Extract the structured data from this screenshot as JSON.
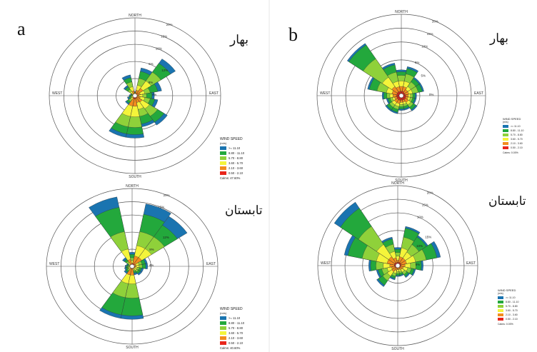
{
  "panels": {
    "a": {
      "label": "a",
      "top": {
        "season": "بهار"
      },
      "bottom": {
        "season": "تابستان"
      }
    },
    "b": {
      "label": "b",
      "top": {
        "season": "بهار"
      },
      "bottom": {
        "season": "تابستان"
      }
    }
  },
  "legend_a_top": {
    "title": "WIND SPEED",
    "unit": "(m/s)",
    "classes": [
      ">= 11.10",
      "8.80 - 11.10",
      "5.70 - 8.80",
      "3.60 - 5.70",
      "2.10 - 3.60",
      "0.50 - 2.10"
    ],
    "calms": "Calms: 47.60%"
  },
  "legend_a_bottom": {
    "title": "WIND SPEED",
    "unit": "(m/s)",
    "classes": [
      ">= 11.10",
      "8.80 - 11.10",
      "5.70 - 8.80",
      "3.60 - 5.70",
      "2.10 - 3.60",
      "0.50 - 2.10"
    ],
    "calms": "Calms: 40.60%"
  },
  "legend_b_top": {
    "title": "WIND SPEED",
    "unit": "(m/s)",
    "classes": [
      ">= 11.10",
      "8.80 - 11.10",
      "5.70 - 8.80",
      "3.60 - 5.70",
      "2.10 - 3.60",
      "0.50 - 2.10"
    ],
    "calms": "Calms: 0.00%"
  },
  "legend_b_bottom": {
    "title": "WIND SPEED",
    "unit": "(m/s)",
    "classes": [
      ">= 11.10",
      "8.80 - 11.10",
      "5.70 - 8.80",
      "3.60 - 5.70",
      "2.10 - 3.60",
      "0.50 - 2.10"
    ],
    "calms": "Calms: 0.00%"
  },
  "colors": {
    "speed_bins": [
      "#1a74b0",
      "#23a83c",
      "#8fd13a",
      "#f4f43a",
      "#f28c1e",
      "#e8261c"
    ],
    "grid": "#555555"
  },
  "chart_data": [
    {
      "id": "a_top",
      "type": "windrose",
      "directions": [
        "N",
        "NNE",
        "NE",
        "ENE",
        "E",
        "ESE",
        "SE",
        "SSE",
        "S",
        "SSW",
        "SW",
        "WSW",
        "W",
        "WNW",
        "NW",
        "NNW"
      ],
      "rings": [
        5,
        10,
        15,
        20
      ],
      "ring_labels": [
        "5%",
        "10%",
        "15%",
        "20%"
      ],
      "compass": [
        "NORTH",
        "EAST",
        "SOUTH",
        "WEST"
      ],
      "bins": [
        ">= 11.10",
        "8.80 - 11.10",
        "5.70 - 8.80",
        "3.60 - 5.70",
        "2.10 - 3.60",
        "0.50 - 2.10"
      ],
      "cumulative": [
        [
          1.2,
          1.0,
          0.8,
          0.6,
          0.4,
          0.2
        ],
        [
          8,
          7,
          5,
          3,
          1.6,
          0.5
        ],
        [
          12.5,
          11,
          8,
          5,
          2.5,
          0.8
        ],
        [
          7,
          6,
          4,
          2.6,
          1.4,
          0.5
        ],
        [
          5,
          4.4,
          3,
          2,
          1,
          0.4
        ],
        [
          6,
          5.2,
          4,
          2.6,
          1.4,
          0.5
        ],
        [
          10,
          9,
          7,
          4.5,
          2.2,
          0.7
        ],
        [
          9,
          8.2,
          6,
          4,
          2,
          0.7
        ],
        [
          12,
          11,
          9,
          6,
          3,
          0.9
        ],
        [
          12,
          11,
          9,
          6,
          3,
          0.9
        ],
        [
          3,
          2.6,
          2,
          1.4,
          0.8,
          0.3
        ],
        [
          2,
          1.6,
          1.2,
          0.9,
          0.5,
          0.2
        ],
        [
          1.5,
          1.2,
          0.9,
          0.6,
          0.4,
          0.2
        ],
        [
          1.2,
          1,
          0.8,
          0.6,
          0.4,
          0.2
        ],
        [
          3.5,
          3,
          2.2,
          1.5,
          0.8,
          0.3
        ],
        [
          6,
          5.2,
          4,
          2.6,
          1.4,
          0.5
        ]
      ],
      "bar_labels": [
        {
          "dir": "NE",
          "ring": 2,
          "text": "12%"
        },
        {
          "dir": "NE",
          "ring": 1,
          "text": "8%"
        },
        {
          "dir": "E",
          "ring": 0.9,
          "text": "4%"
        }
      ],
      "calms": "Calms: 47.60%"
    },
    {
      "id": "a_bottom",
      "type": "windrose",
      "directions": [
        "N",
        "NNE",
        "NE",
        "ENE",
        "E",
        "ESE",
        "SE",
        "SSE",
        "S",
        "SSW",
        "SW",
        "WSW",
        "W",
        "WNW",
        "NW",
        "NNW"
      ],
      "rings": [
        5,
        10,
        15,
        20
      ],
      "ring_labels": [
        "5%",
        "10%",
        "15%",
        "20%"
      ],
      "compass": [
        "NORTH",
        "EAST",
        "SOUTH",
        "WEST"
      ],
      "bins": [
        ">= 11.10",
        "8.80 - 11.10",
        "5.70 - 8.80",
        "3.60 - 5.70",
        "2.10 - 3.60",
        "0.50 - 2.10"
      ],
      "cumulative": [
        [
          4,
          3.4,
          2.4,
          1.6,
          0.9,
          0.3
        ],
        [
          18,
          15,
          10,
          6,
          3,
          0.8
        ],
        [
          17,
          14,
          10,
          6,
          3,
          0.8
        ],
        [
          4,
          3.5,
          2.6,
          1.8,
          1,
          0.4
        ],
        [
          4,
          3.5,
          2.6,
          1.8,
          1,
          0.4
        ],
        [
          3,
          2.5,
          1.9,
          1.4,
          0.8,
          0.3
        ],
        [
          3,
          2.5,
          1.9,
          1.4,
          0.8,
          0.3
        ],
        [
          2.5,
          2,
          1.5,
          1.1,
          0.7,
          0.3
        ],
        [
          15,
          14,
          9,
          5,
          2.5,
          0.7
        ],
        [
          15,
          14,
          9,
          5,
          2.5,
          0.7
        ],
        [
          2.5,
          2,
          1.5,
          1.1,
          0.7,
          0.3
        ],
        [
          2,
          1.6,
          1.2,
          0.9,
          0.5,
          0.2
        ],
        [
          1.8,
          1.5,
          1.1,
          0.8,
          0.5,
          0.2
        ],
        [
          1.5,
          1.2,
          0.9,
          0.6,
          0.4,
          0.2
        ],
        [
          3,
          2.4,
          1.8,
          1.2,
          0.7,
          0.3
        ],
        [
          20,
          17,
          10,
          5,
          2,
          0.6
        ]
      ],
      "bar_labels": [
        {
          "dir": "NE",
          "ring": 2.3,
          "text": "12%"
        },
        {
          "dir": "NE",
          "ring": 1.3,
          "text": "8%"
        },
        {
          "dir": "E",
          "ring": 0.9,
          "text": "4%"
        }
      ],
      "calms": "Calms: 40.60%"
    },
    {
      "id": "b_top",
      "type": "windrose",
      "directions": [
        "N",
        "NNE",
        "NE",
        "ENE",
        "E",
        "ESE",
        "SE",
        "SSE",
        "S",
        "SSW",
        "SW",
        "WSW",
        "W",
        "WNW",
        "NW",
        "NNW"
      ],
      "rings": [
        5,
        10,
        15,
        20
      ],
      "ring_labels": [
        "5%",
        "10%",
        "15%",
        "20%"
      ],
      "compass": [
        "NORTH",
        "EAST",
        "SOUTH",
        "WEST"
      ],
      "bins": [
        ">= 11.10",
        "8.80 - 11.10",
        "5.70 - 8.80",
        "3.60 - 5.70",
        "2.10 - 3.60",
        "0.50 - 2.10"
      ],
      "cumulative": [
        [
          7,
          6.5,
          5.5,
          4,
          2.5,
          1.2
        ],
        [
          8,
          7.5,
          6,
          4,
          2.5,
          1.2
        ],
        [
          6,
          5.6,
          4.5,
          3,
          2,
          1
        ],
        [
          6,
          5.6,
          4.5,
          3,
          2,
          1
        ],
        [
          4,
          3.6,
          3,
          2.4,
          1.8,
          1.2
        ],
        [
          4,
          3.6,
          3,
          2.4,
          1.8,
          1.2
        ],
        [
          5,
          4.6,
          3.8,
          3,
          2.2,
          1.3
        ],
        [
          4,
          3.6,
          3,
          2.4,
          1.8,
          1.2
        ],
        [
          4,
          3.6,
          3,
          2.4,
          1.8,
          1.2
        ],
        [
          5,
          4.6,
          3.8,
          3,
          2.2,
          1.3
        ],
        [
          5,
          4.6,
          3.8,
          3,
          2.2,
          1.3
        ],
        [
          4,
          3.6,
          3,
          2.4,
          1.8,
          1.2
        ],
        [
          5,
          4.6,
          3.8,
          3,
          2.2,
          1.3
        ],
        [
          9,
          8.5,
          6.5,
          4,
          2.5,
          1.2
        ],
        [
          17,
          16.5,
          12,
          6,
          3,
          1.3
        ],
        [
          9,
          8.5,
          6.5,
          4,
          2.5,
          1.2
        ]
      ],
      "bar_labels": [
        {
          "dir": "NE",
          "ring": 1.5,
          "text": "5%"
        },
        {
          "dir": "E",
          "ring": 1.5,
          "text": "0%"
        }
      ],
      "calms": "Calms: 0.00%"
    },
    {
      "id": "b_bottom",
      "type": "windrose",
      "directions": [
        "N",
        "NNE",
        "NE",
        "ENE",
        "E",
        "ESE",
        "SE",
        "SSE",
        "S",
        "SSW",
        "SW",
        "WSW",
        "W",
        "WNW",
        "NW",
        "NNW"
      ],
      "rings": [
        5,
        10,
        15,
        20
      ],
      "ring_labels": [
        "5%",
        "10%",
        "15%",
        "20%"
      ],
      "compass": [
        "NORTH",
        "EAST",
        "SOUTH",
        "WEST"
      ],
      "bins": [
        ">= 11.10",
        "8.80 - 11.10",
        "5.70 - 8.80",
        "3.60 - 5.70",
        "2.10 - 3.60",
        "0.50 - 2.10"
      ],
      "cumulative": [
        [
          5,
          4.5,
          3.6,
          2.6,
          1.5,
          0.8
        ],
        [
          11,
          10.5,
          8,
          5,
          2.5,
          1
        ],
        [
          10,
          9.5,
          7,
          4.5,
          2.5,
          1
        ],
        [
          12,
          11,
          8,
          5,
          2.5,
          1
        ],
        [
          7,
          6.5,
          5,
          3.5,
          2,
          0.8
        ],
        [
          5,
          4.6,
          3.8,
          2.8,
          1.6,
          0.8
        ],
        [
          4,
          3.6,
          3,
          2.2,
          1.4,
          0.7
        ],
        [
          3,
          2.7,
          2.2,
          1.7,
          1.1,
          0.6
        ],
        [
          3,
          2.7,
          2.2,
          1.7,
          1.1,
          0.6
        ],
        [
          4,
          3.6,
          3,
          2.2,
          1.4,
          0.7
        ],
        [
          7,
          6.5,
          5,
          3.5,
          2,
          0.8
        ],
        [
          6,
          5.5,
          4.5,
          3,
          1.8,
          0.8
        ],
        [
          8,
          7.5,
          6,
          4,
          2.2,
          0.9
        ],
        [
          15,
          14,
          10,
          6,
          3,
          1
        ],
        [
          21,
          19,
          13,
          7,
          3,
          1
        ],
        [
          8,
          7.5,
          6,
          4,
          2.2,
          0.9
        ]
      ],
      "bar_labels": [
        {
          "dir": "NE",
          "ring": 2.2,
          "text": "15%"
        },
        {
          "dir": "NE",
          "ring": 1.5,
          "text": "10%"
        },
        {
          "dir": "E",
          "ring": 1,
          "text": "5%"
        }
      ],
      "calms": "Calms: 0.00%"
    }
  ]
}
